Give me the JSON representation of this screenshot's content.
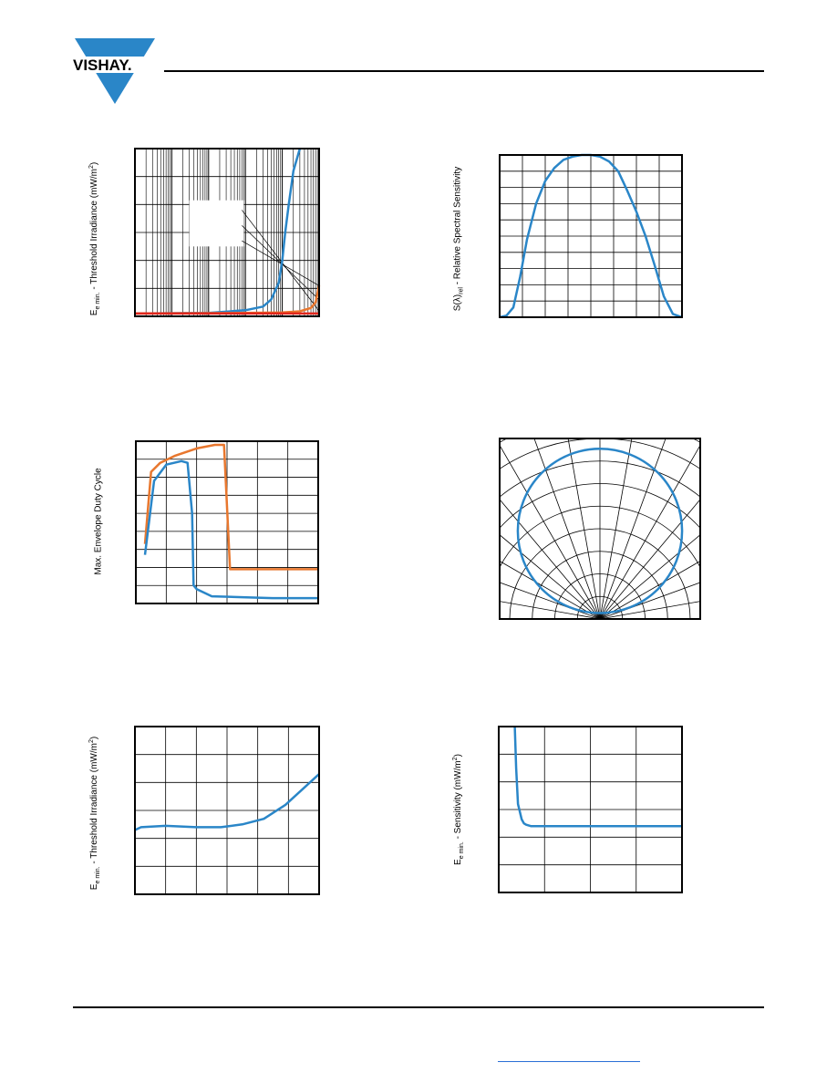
{
  "header": {
    "brand": "VISHAY."
  },
  "colors": {
    "blue": "#2a86c8",
    "orange": "#e8772e",
    "red": "#e1261c",
    "logo": "#2a86c8"
  },
  "chart_data": [
    {
      "id": "threshold-vs-frequency",
      "type": "line",
      "ylabel": {
        "main": "E",
        "sub": "e min.",
        "rest": " - Threshold Irradiance (mW/m",
        "sup": "2",
        "end": ")"
      },
      "xscale": "log",
      "xlim": [
        1,
        100000
      ],
      "ylim": [
        0,
        6
      ],
      "grid": true,
      "series": [
        {
          "color": "blue",
          "x": [
            1,
            100,
            1000,
            3000,
            5000,
            8000,
            10000,
            12000,
            15000,
            20000,
            30000
          ],
          "y": [
            0.1,
            0.12,
            0.22,
            0.35,
            0.6,
            1.2,
            2.0,
            3.0,
            4.0,
            5.2,
            6.0
          ]
        },
        {
          "color": "orange",
          "x": [
            1,
            1000,
            10000,
            30000,
            60000,
            80000,
            100000
          ],
          "y": [
            0.1,
            0.12,
            0.14,
            0.18,
            0.3,
            0.5,
            1.1
          ]
        },
        {
          "color": "red",
          "x": [
            1,
            100000
          ],
          "y": [
            0.1,
            0.1
          ]
        }
      ]
    },
    {
      "id": "relative-spectral-sensitivity",
      "type": "line",
      "ylabel": {
        "main": "S(λ)",
        "sub": "rel",
        "rest": " - Relative Spectral Sensitivity",
        "sup": "",
        "end": ""
      },
      "xlim": [
        0,
        8
      ],
      "ylim": [
        0,
        10
      ],
      "grid": true,
      "series": [
        {
          "color": "blue",
          "x": [
            0,
            0.3,
            0.6,
            0.9,
            1.2,
            1.6,
            2.0,
            2.4,
            2.8,
            3.2,
            3.6,
            4.0,
            4.4,
            4.8,
            5.2,
            5.6,
            6.0,
            6.4,
            6.8,
            7.2,
            7.6,
            8.0
          ],
          "y": [
            0,
            0.1,
            0.6,
            2.5,
            4.8,
            7.0,
            8.4,
            9.2,
            9.7,
            9.9,
            10.0,
            10.0,
            9.9,
            9.6,
            9.0,
            7.8,
            6.5,
            5.0,
            3.2,
            1.3,
            0.2,
            0
          ]
        }
      ]
    },
    {
      "id": "max-envelope-duty-cycle",
      "type": "line",
      "ylabel": {
        "main": "Max. Envelope Duty Cycle",
        "sub": "",
        "rest": "",
        "sup": "",
        "end": ""
      },
      "xlim": [
        0,
        6
      ],
      "ylim": [
        0,
        9
      ],
      "grid": true,
      "series": [
        {
          "color": "orange",
          "x": [
            0.3,
            0.5,
            0.8,
            1.3,
            2.0,
            2.6,
            2.9,
            3.1,
            3.8,
            6.0
          ],
          "y": [
            3.3,
            7.3,
            7.8,
            8.2,
            8.6,
            8.8,
            8.8,
            1.9,
            1.9,
            1.9
          ]
        },
        {
          "color": "blue",
          "x": [
            0.3,
            0.6,
            1.0,
            1.5,
            1.7,
            1.85,
            1.9,
            2.0,
            2.5,
            3.5,
            4.5,
            6.0
          ],
          "y": [
            2.7,
            6.8,
            7.7,
            7.9,
            7.8,
            5.0,
            1.0,
            0.8,
            0.4,
            0.35,
            0.3,
            0.3
          ]
        }
      ]
    },
    {
      "id": "directivity-polar",
      "type": "polar",
      "ylabel": {
        "main": "",
        "sub": "",
        "rest": "",
        "sup": "",
        "end": ""
      },
      "rings": 8,
      "spokes_deg": [
        10,
        20,
        30,
        40,
        50,
        60,
        70,
        80,
        90
      ],
      "series": [
        {
          "color": "blue",
          "shape": "circle"
        }
      ]
    },
    {
      "id": "threshold-vs-ambient",
      "type": "line",
      "ylabel": {
        "main": "E",
        "sub": "e min.",
        "rest": " - Threshold Irradiance (mW/m",
        "sup": "2",
        "end": ")"
      },
      "xlim": [
        0,
        6
      ],
      "ylim": [
        0,
        6
      ],
      "grid": true,
      "series": [
        {
          "color": "blue",
          "x": [
            0,
            0.2,
            1.0,
            2.0,
            2.8,
            3.5,
            4.2,
            4.9,
            5.6,
            6.0
          ],
          "y": [
            2.3,
            2.4,
            2.45,
            2.4,
            2.4,
            2.5,
            2.7,
            3.2,
            3.9,
            4.3
          ]
        }
      ]
    },
    {
      "id": "sensitivity-curve",
      "type": "line",
      "ylabel": {
        "main": "E",
        "sub": "e min.",
        "rest": " - Sensitivity (mW/m",
        "sup": "2",
        "end": ")"
      },
      "xlim": [
        0,
        4
      ],
      "ylim": [
        0,
        6
      ],
      "grid": true,
      "series": [
        {
          "color": "blue",
          "x": [
            0.35,
            0.38,
            0.42,
            0.5,
            0.55,
            0.6,
            0.7,
            1.0,
            4.0
          ],
          "y": [
            6.0,
            4.5,
            3.2,
            2.65,
            2.5,
            2.45,
            2.4,
            2.4,
            2.4
          ]
        }
      ]
    }
  ]
}
